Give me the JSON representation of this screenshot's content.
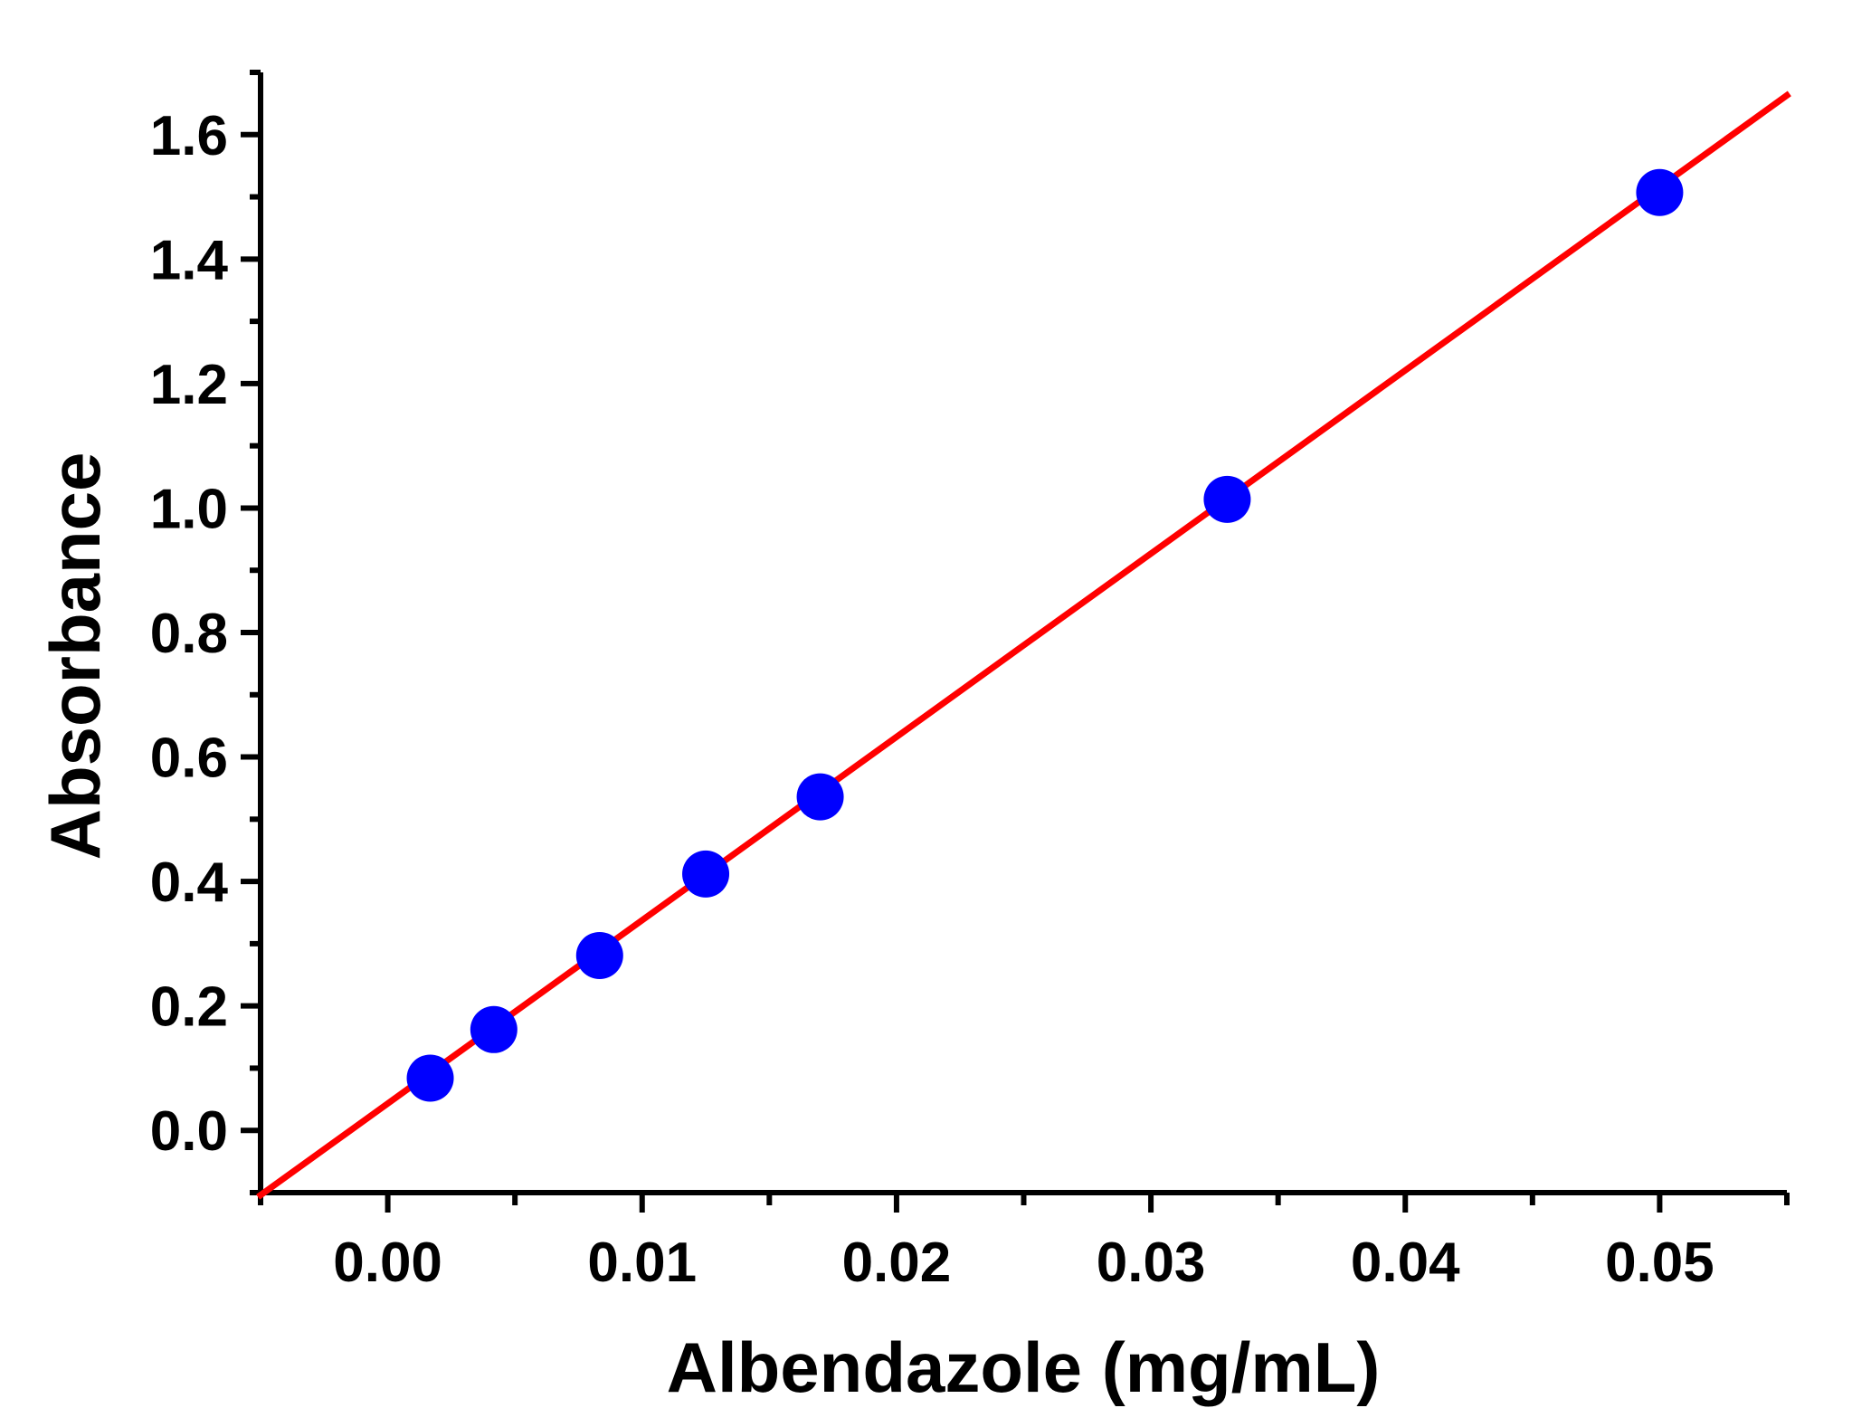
{
  "chart_data": {
    "type": "scatter",
    "title": "",
    "xlabel": "Albendazole (mg/mL)",
    "ylabel": "Absorbance",
    "xlim": [
      -0.005,
      0.055
    ],
    "ylim": [
      -0.1,
      1.7
    ],
    "x_ticks": [
      0.0,
      0.01,
      0.02,
      0.03,
      0.04,
      0.05
    ],
    "x_tick_labels": [
      "0.00",
      "0.01",
      "0.02",
      "0.03",
      "0.04",
      "0.05"
    ],
    "y_ticks": [
      0.0,
      0.2,
      0.4,
      0.6,
      0.8,
      1.0,
      1.2,
      1.4,
      1.6
    ],
    "y_tick_labels": [
      "0.0",
      "0.2",
      "0.4",
      "0.6",
      "0.8",
      "1.0",
      "1.2",
      "1.4",
      "1.6"
    ],
    "grid": false,
    "legend": "none",
    "series": [
      {
        "type": "scatter",
        "color": "#0000ff",
        "x": [
          0.00167,
          0.00417,
          0.00833,
          0.0125,
          0.017,
          0.033,
          0.05
        ],
        "y": [
          0.084,
          0.162,
          0.281,
          0.412,
          0.536,
          1.014,
          1.507
        ]
      },
      {
        "type": "line",
        "color": "#ff0000",
        "x": [
          -0.005,
          0.055
        ],
        "y": [
          -0.104,
          1.663
        ]
      }
    ]
  }
}
